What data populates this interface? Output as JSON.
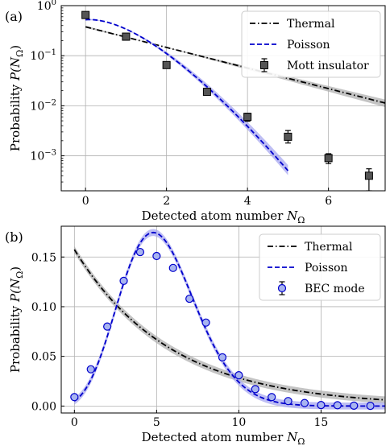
{
  "chart_data": [
    {
      "type": "line",
      "panel_label": "(a)",
      "xlabel": "Detected atom number",
      "xlabel_symbol": "N",
      "xlabel_subscript": "Ω",
      "ylabel": "Probability",
      "ylabel_symbol": "P(N",
      "ylabel_subscript": "Ω",
      "ylabel_close": ")",
      "xlim": [
        -0.6,
        7.4
      ],
      "ylim": [
        0.0002,
        1.0
      ],
      "yscale": "log",
      "grid": true,
      "legend_placement": "top-right",
      "xticks": [
        0,
        2,
        4,
        6
      ],
      "yticks": [
        {
          "value": 1,
          "label_base": "10",
          "label_exp": "0"
        },
        {
          "value": 0.1,
          "label_base": "10",
          "label_exp": "−1"
        },
        {
          "value": 0.01,
          "label_base": "10",
          "label_exp": "−2"
        },
        {
          "value": 0.001,
          "label_base": "10",
          "label_exp": "−3"
        }
      ],
      "legend": [
        {
          "label": "Thermal",
          "style": "dashdot",
          "color": "#000000"
        },
        {
          "label": "Poisson",
          "style": "dashed",
          "color": "#0000cc"
        },
        {
          "label": "Mott insulator",
          "style": "square-marker",
          "color": "#555555"
        }
      ],
      "series": [
        {
          "name": "Thermal",
          "mean": 1.65,
          "band_low_mean": 1.52,
          "band_high_mean": 1.78,
          "x_range": [
            0,
            7.4
          ],
          "color": "#000000",
          "band_color": "#b0b0b0"
        },
        {
          "name": "Poisson",
          "mean": 0.65,
          "band_low_mean": 0.62,
          "band_high_mean": 0.69,
          "x_range": [
            0,
            5
          ],
          "color": "#0000cc",
          "band_color": "#a8a8f0"
        },
        {
          "name": "Mott insulator",
          "x": [
            0,
            1,
            2,
            3,
            4,
            5,
            6,
            7
          ],
          "y": [
            0.65,
            0.24,
            0.065,
            0.019,
            0.006,
            0.0024,
            0.0009,
            0.0004
          ],
          "yerr_low": [
            0.6,
            0.22,
            0.06,
            0.017,
            0.0049,
            0.0018,
            0.0007,
            0.0002
          ],
          "yerr_high": [
            0.7,
            0.26,
            0.07,
            0.021,
            0.0071,
            0.0032,
            0.0011,
            0.00055
          ],
          "color": "#555555"
        }
      ]
    },
    {
      "type": "line",
      "panel_label": "(b)",
      "xlabel": "Detected atom number",
      "xlabel_symbol": "N",
      "xlabel_subscript": "Ω",
      "ylabel": "Probability",
      "ylabel_symbol": "P(N",
      "ylabel_subscript": "Ω",
      "ylabel_close": ")",
      "xlim": [
        -0.8,
        18.9
      ],
      "ylim": [
        -0.007,
        0.181
      ],
      "yscale": "linear",
      "grid": true,
      "legend_placement": "top-right",
      "xticks": [
        0,
        5,
        10,
        15
      ],
      "yticks": [
        0.0,
        0.05,
        0.1,
        0.15
      ],
      "ytick_labels": [
        "0.00",
        "0.05",
        "0.10",
        "0.15"
      ],
      "legend": [
        {
          "label": "Thermal",
          "style": "dashdot",
          "color": "#000000"
        },
        {
          "label": "Poisson",
          "style": "dashed",
          "color": "#0000cc"
        },
        {
          "label": "BEC mode",
          "style": "circle-marker",
          "color": "#0000cc"
        }
      ],
      "series": [
        {
          "name": "Thermal",
          "mean": 5.35,
          "x_range": [
            0,
            18.9
          ],
          "color": "#000000",
          "band_color": "#b0b0b0"
        },
        {
          "name": "Poisson",
          "mean": 5.3,
          "x_range": [
            0,
            18.9
          ],
          "color": "#0000cc",
          "band_color": "#a8a8f0"
        },
        {
          "name": "BEC mode",
          "x": [
            0,
            1,
            2,
            3,
            4,
            5,
            6,
            7,
            8,
            9,
            10,
            11,
            12,
            13,
            14,
            15,
            16,
            17,
            18
          ],
          "y": [
            0.009,
            0.037,
            0.08,
            0.126,
            0.155,
            0.151,
            0.139,
            0.108,
            0.084,
            0.049,
            0.031,
            0.017,
            0.009,
            0.005,
            0.003,
            0.001,
            0.0008,
            0.0004,
            0.0002
          ],
          "color": "#0000cc",
          "fill": "#a8b4f0"
        }
      ]
    }
  ]
}
